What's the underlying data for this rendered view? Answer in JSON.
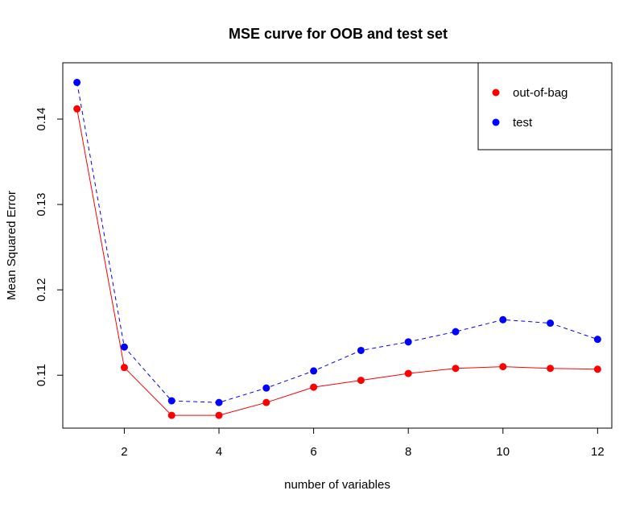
{
  "chart_data": {
    "type": "line",
    "title": "MSE curve for OOB and test set",
    "xlabel": "number of variables",
    "ylabel": "Mean Squared Error",
    "x": [
      1,
      2,
      3,
      4,
      5,
      6,
      7,
      8,
      9,
      10,
      11,
      12
    ],
    "xticks": [
      2,
      4,
      6,
      8,
      10,
      12
    ],
    "yticks": [
      0.11,
      0.12,
      0.13,
      0.14
    ],
    "xlim": [
      0.7,
      12.3
    ],
    "ylim": [
      0.1038,
      0.1466
    ],
    "grid": false,
    "legend_position": "top-right",
    "series": [
      {
        "name": "out-of-bag",
        "color": "#ff0000",
        "line_style": "solid",
        "values": [
          0.1412,
          0.1109,
          0.1053,
          0.1053,
          0.1068,
          0.1086,
          0.1094,
          0.1102,
          0.1108,
          0.111,
          0.1108,
          0.1107
        ]
      },
      {
        "name": "test",
        "color": "#0000ff",
        "line_style": "dashed",
        "values": [
          0.1443,
          0.1133,
          0.107,
          0.1068,
          0.1085,
          0.1105,
          0.1129,
          0.1139,
          0.1151,
          0.1165,
          0.1161,
          0.1142
        ]
      }
    ]
  }
}
